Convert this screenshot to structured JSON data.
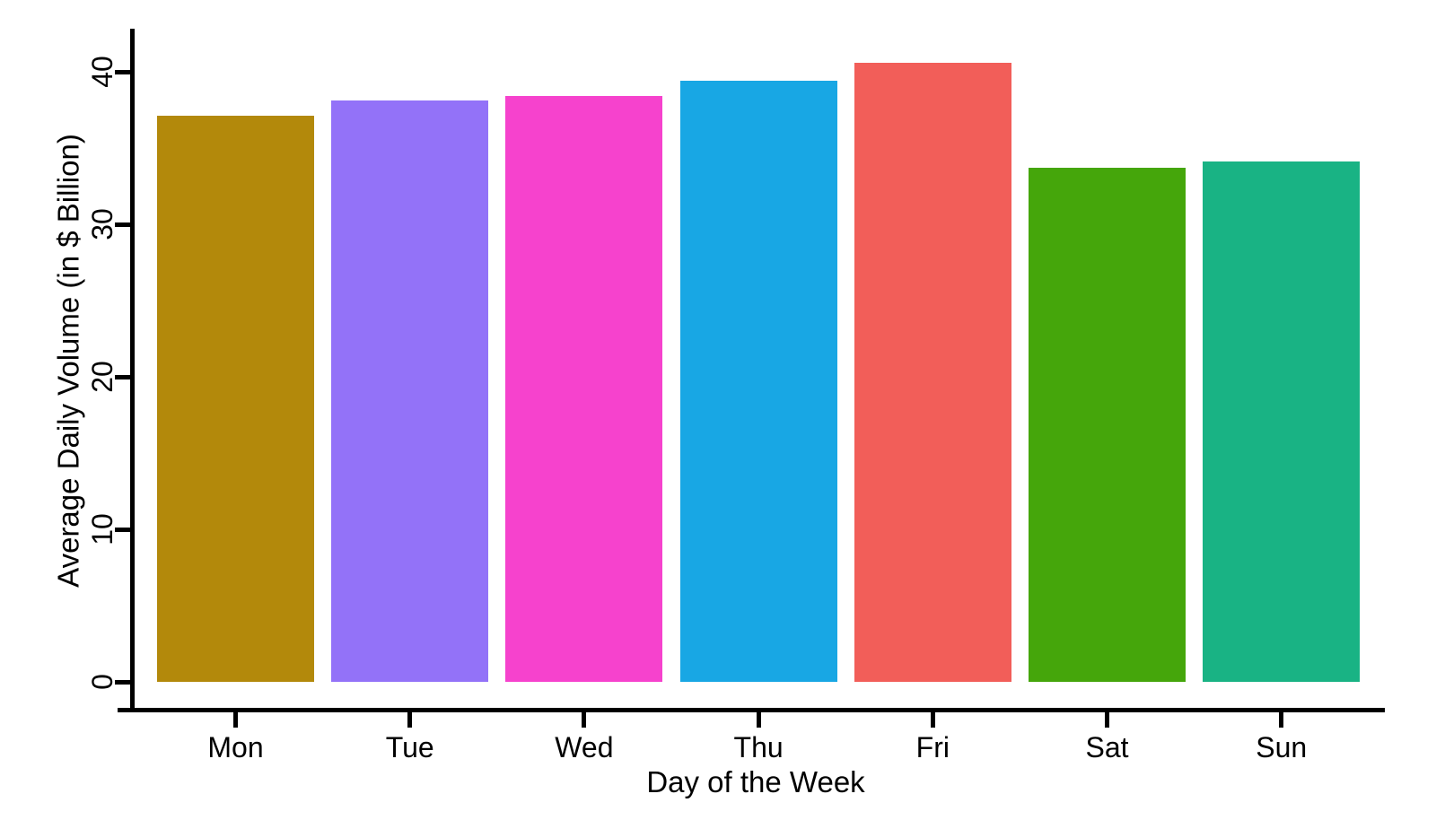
{
  "chart_data": {
    "type": "bar",
    "title": "",
    "xlabel": "Day of the Week",
    "ylabel": "Average Daily Volume (in $ Billion)",
    "categories": [
      "Mon",
      "Tue",
      "Wed",
      "Thu",
      "Fri",
      "Sat",
      "Sun"
    ],
    "values": [
      37.1,
      38.1,
      38.4,
      39.4,
      40.6,
      33.7,
      34.1
    ],
    "bar_colors": [
      "#B3890B",
      "#9372F8",
      "#F642CD",
      "#18A7E4",
      "#F25E59",
      "#45A60B",
      "#19B384"
    ],
    "yticks": [
      0,
      10,
      20,
      30,
      40
    ],
    "ytick_labels": [
      "0",
      "10",
      "20",
      "30",
      "40"
    ],
    "ylim": [
      0,
      42.8
    ],
    "grid": false,
    "legend_position": "none",
    "axis_color": "#000000",
    "background_color": "#FFFFFF"
  }
}
